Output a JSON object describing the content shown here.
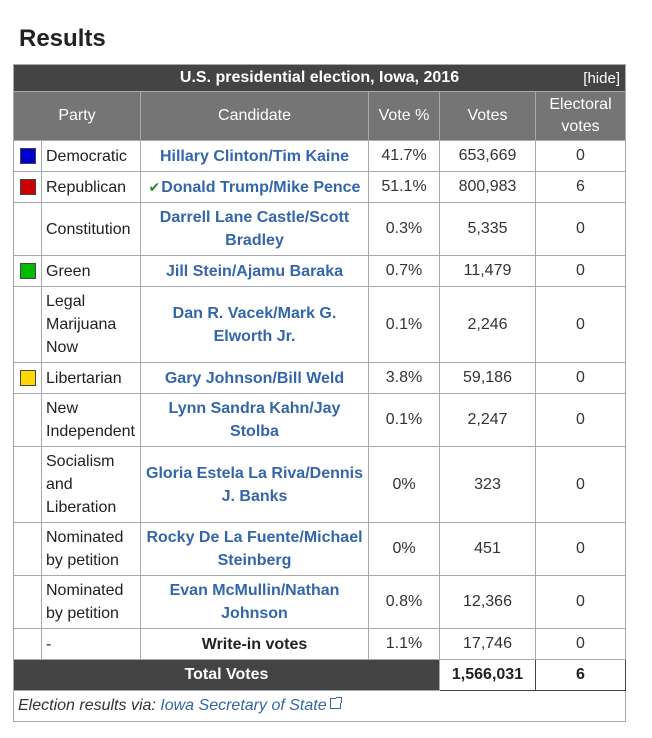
{
  "heading": "Results",
  "table": {
    "caption": "U.S. presidential election, Iowa, 2016",
    "hide_label": "[hide]",
    "columns": [
      "Party",
      "Candidate",
      "Vote %",
      "Votes",
      "Electoral votes"
    ],
    "rows": [
      {
        "color": "#0000cc",
        "party": "Democratic",
        "candidate_a": "Hillary Clinton",
        "sep": "/",
        "candidate_b": "Tim Kaine",
        "winner": false,
        "pct": "41.7%",
        "votes": "653,669",
        "ev": "0"
      },
      {
        "color": "#cc0000",
        "party": "Republican",
        "candidate_a": "Donald Trump",
        "sep": "/",
        "candidate_b": "Mike Pence",
        "winner": true,
        "pct": "51.1%",
        "votes": "800,983",
        "ev": "6"
      },
      {
        "color": "",
        "party": "Constitution",
        "candidate_a": "Darrell Lane Castle",
        "sep": "/",
        "candidate_b": "Scott Bradley",
        "winner": false,
        "pct": "0.3%",
        "votes": "5,335",
        "ev": "0"
      },
      {
        "color": "#00bb00",
        "party": "Green",
        "candidate_a": "Jill Stein",
        "sep": "/",
        "candidate_b": "Ajamu Baraka",
        "winner": false,
        "pct": "0.7%",
        "votes": "11,479",
        "ev": "0"
      },
      {
        "color": "",
        "party": "Legal Marijuana Now",
        "candidate_a": "Dan R. Vacek",
        "sep": "/",
        "candidate_b": "Mark G. Elworth Jr.",
        "winner": false,
        "pct": "0.1%",
        "votes": "2,246",
        "ev": "0"
      },
      {
        "color": "#ffd700",
        "party": "Libertarian",
        "candidate_a": "Gary Johnson",
        "sep": "/",
        "candidate_b": "Bill Weld",
        "winner": false,
        "pct": "3.8%",
        "votes": "59,186",
        "ev": "0"
      },
      {
        "color": "",
        "party": "New Independent",
        "candidate_a": "Lynn Sandra Kahn",
        "sep": "/",
        "candidate_b": "Jay Stolba",
        "winner": false,
        "pct": "0.1%",
        "votes": "2,247",
        "ev": "0"
      },
      {
        "color": "",
        "party": "Socialism and Liberation",
        "candidate_a": "Gloria Estela La Riva",
        "sep": "/",
        "candidate_b": "Dennis J. Banks",
        "winner": false,
        "pct": "0%",
        "votes": "323",
        "ev": "0"
      },
      {
        "color": "",
        "party": "Nominated by petition",
        "candidate_a": "Rocky De La Fuente",
        "sep": "/",
        "candidate_b": "Michael Steinberg",
        "winner": false,
        "pct": "0%",
        "votes": "451",
        "ev": "0"
      },
      {
        "color": "",
        "party": "Nominated by petition",
        "candidate_a": "Evan McMullin",
        "sep": "/",
        "candidate_b": "Nathan Johnson",
        "winner": false,
        "pct": "0.8%",
        "votes": "12,366",
        "ev": "0"
      },
      {
        "color": "",
        "party": "-",
        "candidate_plain": "Write-in votes",
        "winner": false,
        "pct": "1.1%",
        "votes": "17,746",
        "ev": "0"
      }
    ],
    "total": {
      "label": "Total Votes",
      "votes": "1,566,031",
      "ev": "6"
    },
    "footer": {
      "prefix": "Election results via: ",
      "link_text": "Iowa Secretary of State"
    }
  }
}
